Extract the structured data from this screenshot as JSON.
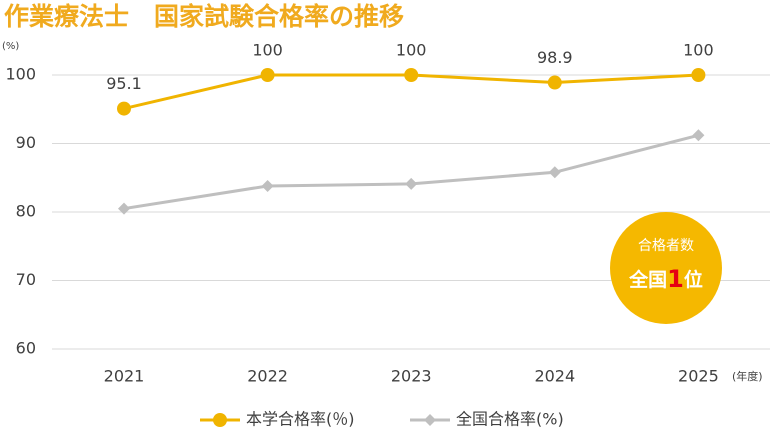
{
  "chart_data": {
    "type": "line",
    "title": "作業療法士　国家試験合格率の推移",
    "y_axis_label": "(%)",
    "x_axis_label": "(年度)",
    "categories": [
      "2021",
      "2022",
      "2023",
      "2024",
      "2025"
    ],
    "series": [
      {
        "name": "本学合格率(％)",
        "color": "#f0b400",
        "marker": "circle",
        "values": [
          95.1,
          100,
          100,
          98.9,
          100
        ],
        "data_labels": true
      },
      {
        "name": "全国合格率(%)",
        "color": "#bfbfbf",
        "marker": "diamond",
        "values": [
          80.5,
          83.8,
          84.1,
          85.8,
          91.2
        ],
        "data_labels": false
      }
    ],
    "ylim": [
      60,
      100
    ],
    "yticks": [
      60,
      70,
      80,
      90,
      100
    ],
    "grid": true,
    "legend": "bottom",
    "badge": {
      "caption": "合格者数",
      "prefix": "全国",
      "rank": "1",
      "suffix": "位",
      "color": "#f5b800",
      "rank_color": "#e60012"
    }
  }
}
